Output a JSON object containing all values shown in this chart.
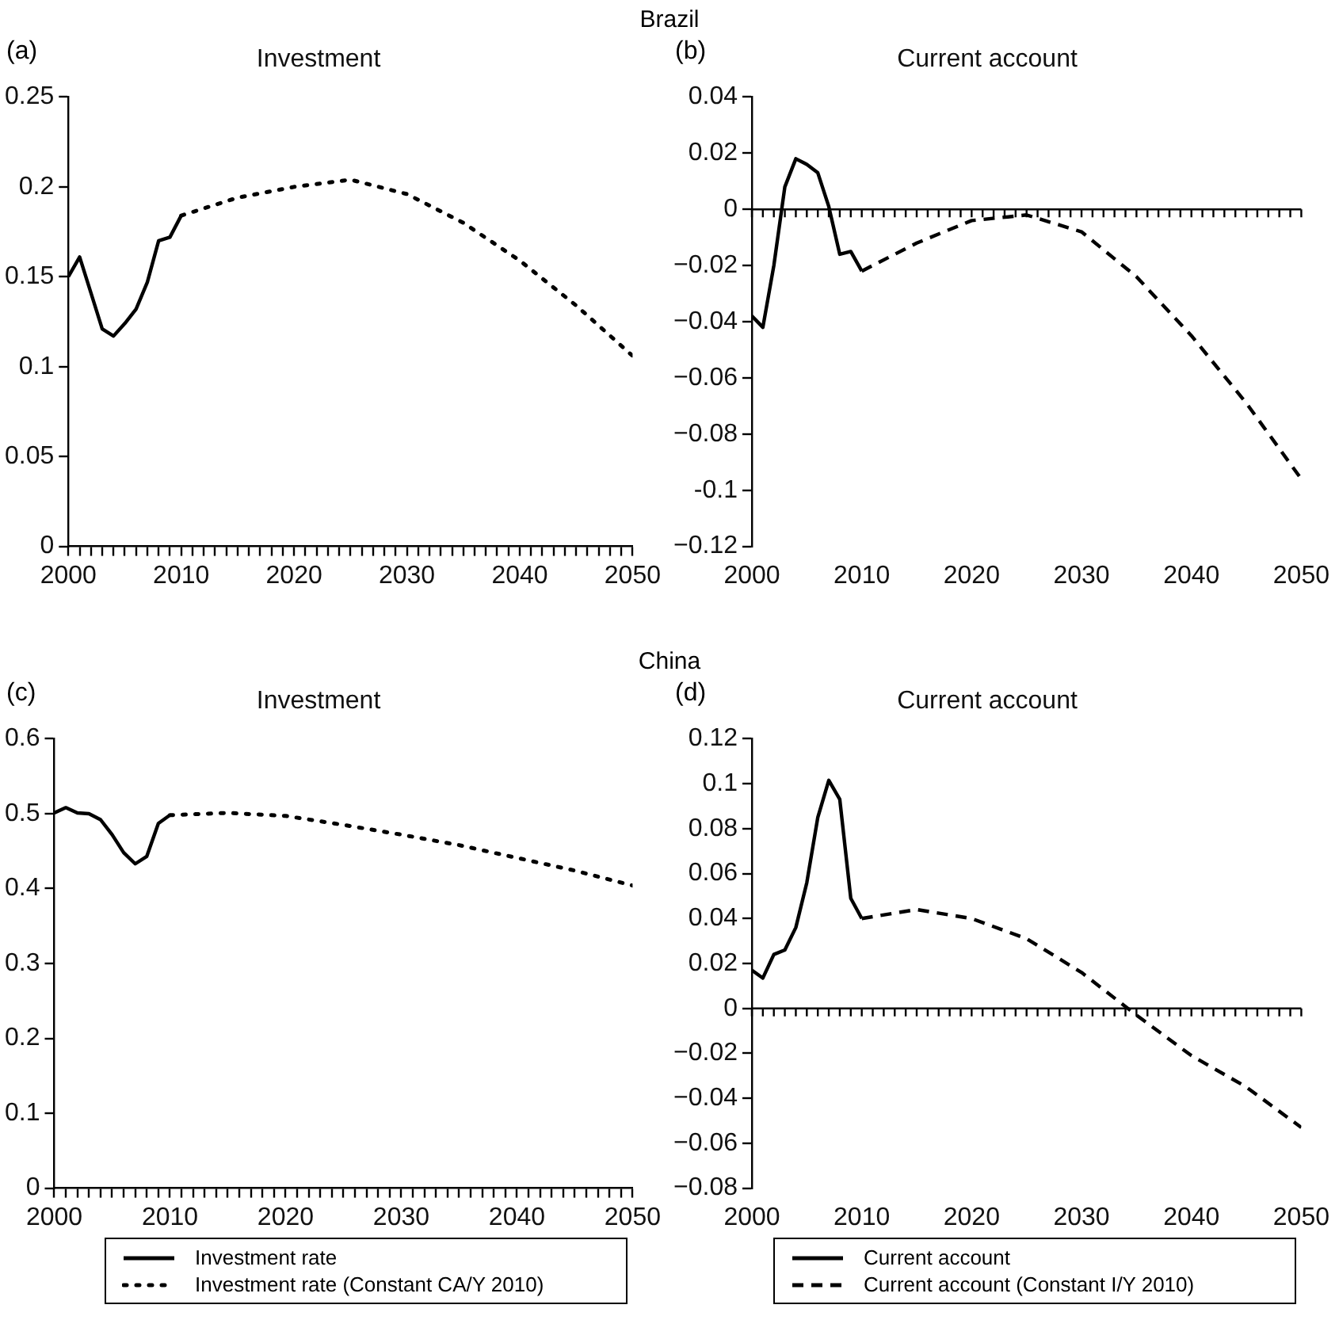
{
  "chart_data": [
    {
      "type": "line",
      "title": "Investment",
      "annotations": [
        "Brazil",
        "(a)"
      ],
      "legend": false,
      "xlim": [
        2000,
        2050
      ],
      "ylim": [
        0,
        0.25
      ],
      "yticks": [
        0,
        0.05,
        0.1,
        0.15,
        0.2,
        0.25
      ],
      "xticks": [
        2000,
        {
          "value": 2001,
          "label": null
        },
        {
          "value": 2002,
          "label": null
        },
        {
          "value": 2003,
          "label": null
        },
        {
          "value": 2004,
          "label": null
        },
        {
          "value": 2005,
          "label": null
        },
        {
          "value": 2006,
          "label": null
        },
        {
          "value": 2007,
          "label": null
        },
        {
          "value": 2008,
          "label": null
        },
        {
          "value": 2009,
          "label": null
        },
        2010,
        {
          "value": 2011,
          "label": null
        },
        {
          "value": 2012,
          "label": null
        },
        {
          "value": 2013,
          "label": null
        },
        {
          "value": 2014,
          "label": null
        },
        {
          "value": 2015,
          "label": null
        },
        {
          "value": 2016,
          "label": null
        },
        {
          "value": 2017,
          "label": null
        },
        {
          "value": 2018,
          "label": null
        },
        {
          "value": 2019,
          "label": null
        },
        2020,
        {
          "value": 2021,
          "label": null
        },
        {
          "value": 2022,
          "label": null
        },
        {
          "value": 2023,
          "label": null
        },
        {
          "value": 2024,
          "label": null
        },
        {
          "value": 2025,
          "label": null
        },
        {
          "value": 2026,
          "label": null
        },
        {
          "value": 2027,
          "label": null
        },
        {
          "value": 2028,
          "label": null
        },
        {
          "value": 2029,
          "label": null
        },
        2030,
        {
          "value": 2031,
          "label": null
        },
        {
          "value": 2032,
          "label": null
        },
        {
          "value": 2033,
          "label": null
        },
        {
          "value": 2034,
          "label": null
        },
        {
          "value": 2035,
          "label": null
        },
        {
          "value": 2036,
          "label": null
        },
        {
          "value": 2037,
          "label": null
        },
        {
          "value": 2038,
          "label": null
        },
        {
          "value": 2039,
          "label": null
        },
        2040,
        {
          "value": 2041,
          "label": null
        },
        {
          "value": 2042,
          "label": null
        },
        {
          "value": 2043,
          "label": null
        },
        {
          "value": 2044,
          "label": null
        },
        {
          "value": 2045,
          "label": null
        },
        {
          "value": 2046,
          "label": null
        },
        {
          "value": 2047,
          "label": null
        },
        {
          "value": 2048,
          "label": null
        },
        {
          "value": 2049,
          "label": null
        },
        2050
      ],
      "series": [
        {
          "color": "#000000",
          "line_style": "solid",
          "x": [
            2000,
            2001,
            2002,
            2003,
            2004,
            2005,
            2006,
            2007,
            2008,
            2009,
            2010
          ],
          "values": [
            0.15,
            0.161,
            0.141,
            0.121,
            0.117,
            0.124,
            0.132,
            0.147,
            0.17,
            0.172,
            0.184
          ]
        },
        {
          "color": "#000000",
          "line_style": "dotted",
          "x": [
            2010,
            2015,
            2020,
            2025,
            2030,
            2035,
            2040,
            2045,
            2050
          ],
          "values": [
            0.184,
            0.194,
            0.2,
            0.204,
            0.196,
            0.18,
            0.159,
            0.134,
            0.106
          ]
        }
      ]
    },
    {
      "type": "line",
      "title": "Current account",
      "annotations": [
        "(b)"
      ],
      "legend": false,
      "xlim": [
        2000,
        2050
      ],
      "ylim": [
        -0.12,
        0.04
      ],
      "yticks": [
        0.04,
        0.02,
        0,
        {
          "value": -0.02,
          "label": "−0.02"
        },
        {
          "value": -0.04,
          "label": "−0.04"
        },
        {
          "value": -0.06,
          "label": "−0.06"
        },
        {
          "value": -0.08,
          "label": "−0.08"
        },
        {
          "value": -0.1,
          "label": "-0.1"
        },
        {
          "value": -0.12,
          "label": "−0.12"
        }
      ],
      "ref_lines": [
        {
          "axis": "y",
          "value": 0,
          "color": "#000000"
        }
      ],
      "xticks": [
        2000,
        {
          "value": 2001,
          "label": null
        },
        {
          "value": 2002,
          "label": null
        },
        {
          "value": 2003,
          "label": null
        },
        {
          "value": 2004,
          "label": null
        },
        {
          "value": 2005,
          "label": null
        },
        {
          "value": 2006,
          "label": null
        },
        {
          "value": 2007,
          "label": null
        },
        {
          "value": 2008,
          "label": null
        },
        {
          "value": 2009,
          "label": null
        },
        2010,
        {
          "value": 2011,
          "label": null
        },
        {
          "value": 2012,
          "label": null
        },
        {
          "value": 2013,
          "label": null
        },
        {
          "value": 2014,
          "label": null
        },
        {
          "value": 2015,
          "label": null
        },
        {
          "value": 2016,
          "label": null
        },
        {
          "value": 2017,
          "label": null
        },
        {
          "value": 2018,
          "label": null
        },
        {
          "value": 2019,
          "label": null
        },
        2020,
        {
          "value": 2021,
          "label": null
        },
        {
          "value": 2022,
          "label": null
        },
        {
          "value": 2023,
          "label": null
        },
        {
          "value": 2024,
          "label": null
        },
        {
          "value": 2025,
          "label": null
        },
        {
          "value": 2026,
          "label": null
        },
        {
          "value": 2027,
          "label": null
        },
        {
          "value": 2028,
          "label": null
        },
        {
          "value": 2029,
          "label": null
        },
        2030,
        {
          "value": 2031,
          "label": null
        },
        {
          "value": 2032,
          "label": null
        },
        {
          "value": 2033,
          "label": null
        },
        {
          "value": 2034,
          "label": null
        },
        {
          "value": 2035,
          "label": null
        },
        {
          "value": 2036,
          "label": null
        },
        {
          "value": 2037,
          "label": null
        },
        {
          "value": 2038,
          "label": null
        },
        {
          "value": 2039,
          "label": null
        },
        2040,
        {
          "value": 2041,
          "label": null
        },
        {
          "value": 2042,
          "label": null
        },
        {
          "value": 2043,
          "label": null
        },
        {
          "value": 2044,
          "label": null
        },
        {
          "value": 2045,
          "label": null
        },
        {
          "value": 2046,
          "label": null
        },
        {
          "value": 2047,
          "label": null
        },
        {
          "value": 2048,
          "label": null
        },
        {
          "value": 2049,
          "label": null
        },
        2050
      ],
      "series": [
        {
          "color": "#000000",
          "line_style": "solid",
          "x": [
            2000,
            2001,
            2002,
            2003,
            2004,
            2005,
            2006,
            2007,
            2008,
            2009,
            2010
          ],
          "values": [
            -0.038,
            -0.042,
            -0.02,
            0.008,
            0.018,
            0.016,
            0.013,
            0.001,
            -0.016,
            -0.015,
            -0.022
          ]
        },
        {
          "color": "#000000",
          "line_style": "dashed",
          "x": [
            2010,
            2015,
            2020,
            2025,
            2030,
            2035,
            2040,
            2045,
            2050
          ],
          "values": [
            -0.022,
            -0.012,
            -0.004,
            -0.002,
            -0.008,
            -0.024,
            -0.045,
            -0.069,
            -0.096
          ]
        }
      ]
    },
    {
      "type": "line",
      "title": "Investment",
      "annotations": [
        "China",
        "(c)"
      ],
      "legend": "bottom",
      "xlim": [
        2000,
        2050
      ],
      "ylim": [
        0,
        0.6
      ],
      "yticks": [
        0,
        0.1,
        0.2,
        0.3,
        0.4,
        0.5,
        0.6
      ],
      "xticks": [
        2000,
        {
          "value": 2001,
          "label": null
        },
        {
          "value": 2002,
          "label": null
        },
        {
          "value": 2003,
          "label": null
        },
        {
          "value": 2004,
          "label": null
        },
        {
          "value": 2005,
          "label": null
        },
        {
          "value": 2006,
          "label": null
        },
        {
          "value": 2007,
          "label": null
        },
        {
          "value": 2008,
          "label": null
        },
        {
          "value": 2009,
          "label": null
        },
        2010,
        {
          "value": 2011,
          "label": null
        },
        {
          "value": 2012,
          "label": null
        },
        {
          "value": 2013,
          "label": null
        },
        {
          "value": 2014,
          "label": null
        },
        {
          "value": 2015,
          "label": null
        },
        {
          "value": 2016,
          "label": null
        },
        {
          "value": 2017,
          "label": null
        },
        {
          "value": 2018,
          "label": null
        },
        {
          "value": 2019,
          "label": null
        },
        2020,
        {
          "value": 2021,
          "label": null
        },
        {
          "value": 2022,
          "label": null
        },
        {
          "value": 2023,
          "label": null
        },
        {
          "value": 2024,
          "label": null
        },
        {
          "value": 2025,
          "label": null
        },
        {
          "value": 2026,
          "label": null
        },
        {
          "value": 2027,
          "label": null
        },
        {
          "value": 2028,
          "label": null
        },
        {
          "value": 2029,
          "label": null
        },
        2030,
        {
          "value": 2031,
          "label": null
        },
        {
          "value": 2032,
          "label": null
        },
        {
          "value": 2033,
          "label": null
        },
        {
          "value": 2034,
          "label": null
        },
        {
          "value": 2035,
          "label": null
        },
        {
          "value": 2036,
          "label": null
        },
        {
          "value": 2037,
          "label": null
        },
        {
          "value": 2038,
          "label": null
        },
        {
          "value": 2039,
          "label": null
        },
        2040,
        {
          "value": 2041,
          "label": null
        },
        {
          "value": 2042,
          "label": null
        },
        {
          "value": 2043,
          "label": null
        },
        {
          "value": 2044,
          "label": null
        },
        {
          "value": 2045,
          "label": null
        },
        {
          "value": 2046,
          "label": null
        },
        {
          "value": 2047,
          "label": null
        },
        {
          "value": 2048,
          "label": null
        },
        {
          "value": 2049,
          "label": null
        },
        2050
      ],
      "series": [
        {
          "name": "Investment rate",
          "color": "#000000",
          "line_style": "solid",
          "x": [
            2000,
            2001,
            2002,
            2003,
            2004,
            2005,
            2006,
            2007,
            2008,
            2009,
            2010
          ],
          "values": [
            0.501,
            0.508,
            0.501,
            0.5,
            0.492,
            0.472,
            0.448,
            0.433,
            0.443,
            0.487,
            0.498
          ]
        },
        {
          "name": "Investment rate (Constant CA/Y 2010)",
          "color": "#000000",
          "line_style": "dotted",
          "x": [
            2010,
            2015,
            2020,
            2025,
            2030,
            2035,
            2040,
            2045,
            2050
          ],
          "values": [
            0.498,
            0.501,
            0.497,
            0.485,
            0.472,
            0.458,
            0.441,
            0.424,
            0.404
          ]
        }
      ]
    },
    {
      "type": "line",
      "title": "Current account",
      "annotations": [
        "(d)"
      ],
      "legend": "bottom",
      "xlim": [
        2000,
        2050
      ],
      "ylim": [
        -0.08,
        0.12
      ],
      "yticks": [
        0.12,
        0.1,
        0.08,
        0.06,
        0.04,
        0.02,
        0,
        {
          "value": -0.02,
          "label": "−0.02"
        },
        {
          "value": -0.04,
          "label": "−0.04"
        },
        {
          "value": -0.06,
          "label": "−0.06"
        },
        {
          "value": -0.08,
          "label": "−0.08"
        }
      ],
      "ref_lines": [
        {
          "axis": "y",
          "value": 0,
          "color": "#000000"
        }
      ],
      "xticks": [
        2000,
        {
          "value": 2001,
          "label": null
        },
        {
          "value": 2002,
          "label": null
        },
        {
          "value": 2003,
          "label": null
        },
        {
          "value": 2004,
          "label": null
        },
        {
          "value": 2005,
          "label": null
        },
        {
          "value": 2006,
          "label": null
        },
        {
          "value": 2007,
          "label": null
        },
        {
          "value": 2008,
          "label": null
        },
        {
          "value": 2009,
          "label": null
        },
        2010,
        {
          "value": 2011,
          "label": null
        },
        {
          "value": 2012,
          "label": null
        },
        {
          "value": 2013,
          "label": null
        },
        {
          "value": 2014,
          "label": null
        },
        {
          "value": 2015,
          "label": null
        },
        {
          "value": 2016,
          "label": null
        },
        {
          "value": 2017,
          "label": null
        },
        {
          "value": 2018,
          "label": null
        },
        {
          "value": 2019,
          "label": null
        },
        2020,
        {
          "value": 2021,
          "label": null
        },
        {
          "value": 2022,
          "label": null
        },
        {
          "value": 2023,
          "label": null
        },
        {
          "value": 2024,
          "label": null
        },
        {
          "value": 2025,
          "label": null
        },
        {
          "value": 2026,
          "label": null
        },
        {
          "value": 2027,
          "label": null
        },
        {
          "value": 2028,
          "label": null
        },
        {
          "value": 2029,
          "label": null
        },
        2030,
        {
          "value": 2031,
          "label": null
        },
        {
          "value": 2032,
          "label": null
        },
        {
          "value": 2033,
          "label": null
        },
        {
          "value": 2034,
          "label": null
        },
        {
          "value": 2035,
          "label": null
        },
        {
          "value": 2036,
          "label": null
        },
        {
          "value": 2037,
          "label": null
        },
        {
          "value": 2038,
          "label": null
        },
        {
          "value": 2039,
          "label": null
        },
        2040,
        {
          "value": 2041,
          "label": null
        },
        {
          "value": 2042,
          "label": null
        },
        {
          "value": 2043,
          "label": null
        },
        {
          "value": 2044,
          "label": null
        },
        {
          "value": 2045,
          "label": null
        },
        {
          "value": 2046,
          "label": null
        },
        {
          "value": 2047,
          "label": null
        },
        {
          "value": 2048,
          "label": null
        },
        {
          "value": 2049,
          "label": null
        },
        2050
      ],
      "series": [
        {
          "name": "Current account",
          "color": "#000000",
          "line_style": "solid",
          "x": [
            2000,
            2001,
            2002,
            2003,
            2004,
            2005,
            2006,
            2007,
            2008,
            2009,
            2010
          ],
          "values": [
            0.017,
            0.0135,
            0.024,
            0.026,
            0.036,
            0.056,
            0.085,
            0.1015,
            0.093,
            0.049,
            0.04
          ]
        },
        {
          "name": "Current account (Constant I/Y 2010)",
          "color": "#000000",
          "line_style": "dashed",
          "x": [
            2010,
            2015,
            2020,
            2025,
            2030,
            2035,
            2040,
            2045,
            2050
          ],
          "values": [
            0.04,
            0.044,
            0.04,
            0.031,
            0.016,
            -0.003,
            -0.021,
            -0.035,
            -0.053
          ]
        }
      ]
    }
  ]
}
